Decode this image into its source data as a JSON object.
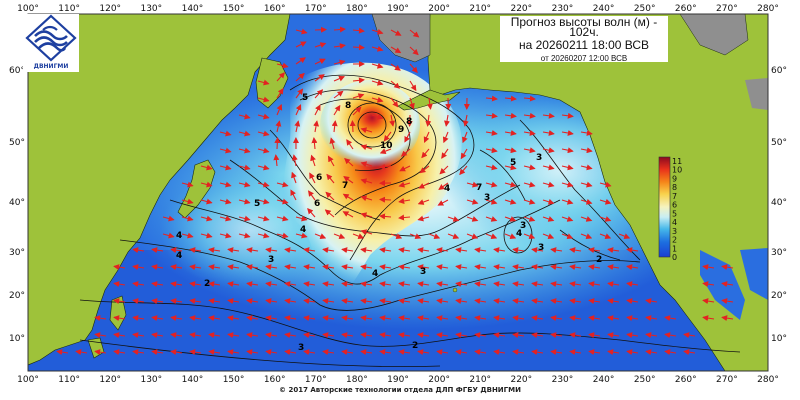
{
  "title": {
    "line1": "Прогноз высоты волн (м) -",
    "line2": "102ч.",
    "line3": "на 20260211 18:00 ВСВ",
    "line4": "от 20260207 12:00 ВСВ"
  },
  "logo": {
    "name": "ДВНИГМИ",
    "icon": "waves-emblem-icon"
  },
  "footer": "© 2017 Авторские технологии отдела ДЛП ФГБУ ДВНИГМИ",
  "axes": {
    "lon_ticks": [
      "100°",
      "110°",
      "120°",
      "130°",
      "140°",
      "150°",
      "160°",
      "170°",
      "180°",
      "190°",
      "200°",
      "210°",
      "220°",
      "230°",
      "240°",
      "250°",
      "260°",
      "270°",
      "280°"
    ],
    "lat_ticks": [
      "60°",
      "50°",
      "40°",
      "30°",
      "20°",
      "10°"
    ]
  },
  "colorbar": {
    "labels": [
      "11",
      "10",
      "9",
      "8",
      "7",
      "6",
      "5",
      "4",
      "3",
      "2",
      "1",
      "0"
    ]
  },
  "contour_labels": [
    "5",
    "8",
    "10",
    "9",
    "8",
    "6",
    "7",
    "4",
    "7",
    "6",
    "5",
    "4",
    "3",
    "5",
    "4",
    "4",
    "3",
    "4",
    "3",
    "2",
    "3",
    "3",
    "3",
    "2",
    "2",
    "4",
    "3"
  ],
  "colors": {
    "land": "#9ec23a",
    "land_outline": "#1b2a10",
    "ice_gray": "#8f8f8f",
    "arrow": "#e32222",
    "calm_blue": "#1f5fdd",
    "peak_red": "#c8122b"
  }
}
